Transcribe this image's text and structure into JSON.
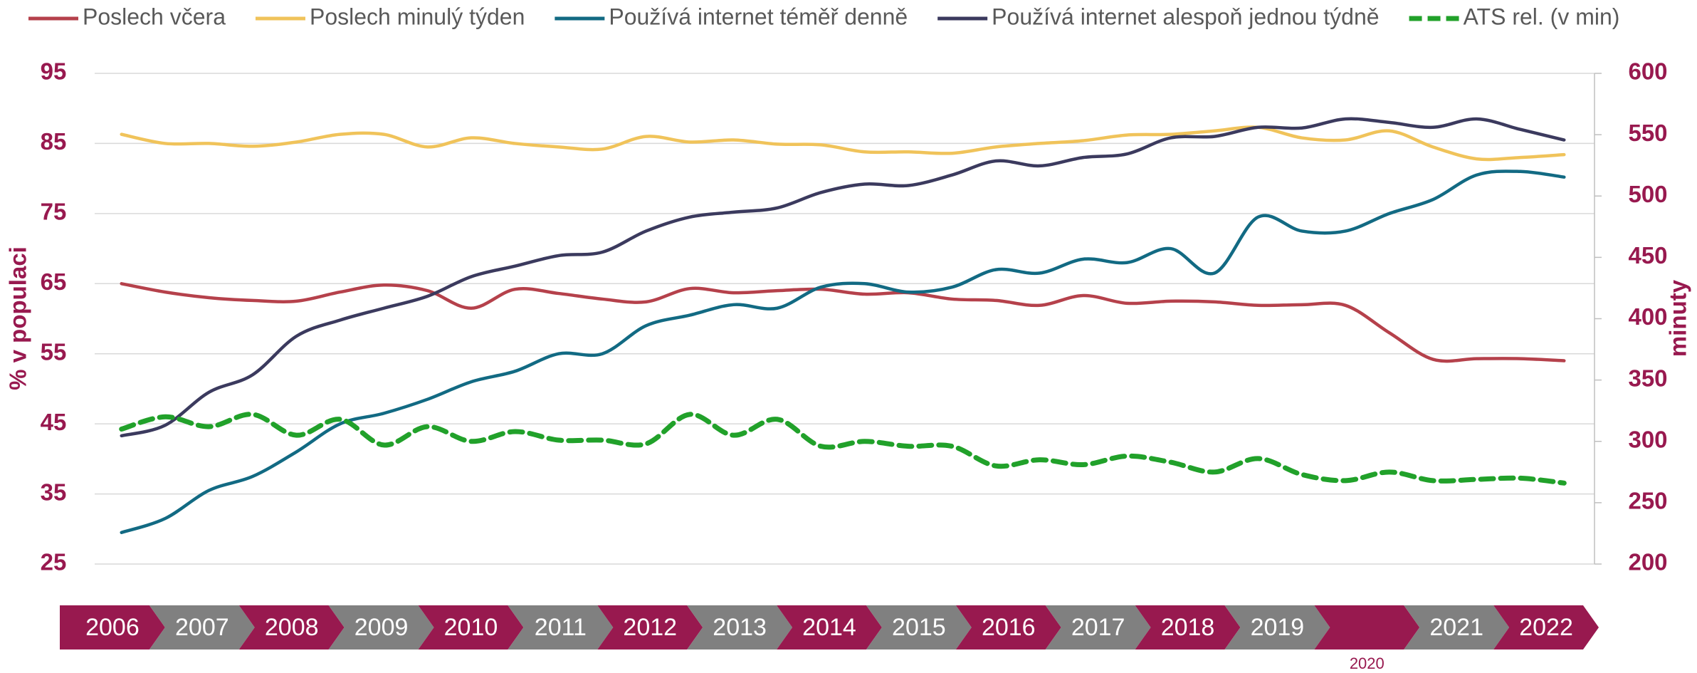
{
  "chart_data": {
    "type": "line",
    "ylabel": "% v populaci",
    "y2label": "minuty",
    "x": [
      2006.25,
      2006.75,
      2007.25,
      2007.75,
      2008.25,
      2008.75,
      2009.25,
      2009.75,
      2010.25,
      2010.75,
      2011.25,
      2011.75,
      2012.25,
      2012.75,
      2013.25,
      2013.75,
      2014.25,
      2014.75,
      2015.25,
      2015.75,
      2016.25,
      2016.75,
      2017.25,
      2017.75,
      2018.25,
      2018.75,
      2019.25,
      2019.75,
      2020.25,
      2020.75,
      2021.25,
      2021.75,
      2022.25,
      2022.75
    ],
    "xlim": [
      2006,
      2023
    ],
    "ylim": [
      25,
      95
    ],
    "yticks": [
      25,
      35,
      45,
      55,
      65,
      75,
      85,
      95
    ],
    "y2lim": [
      200,
      600
    ],
    "y2ticks": [
      200,
      250,
      300,
      350,
      400,
      450,
      500,
      550,
      600
    ],
    "grid": true,
    "legend": "top",
    "series": [
      {
        "name": "Poslech včera",
        "color": "#b5414b",
        "style": "solid",
        "values": [
          65,
          63.8,
          63,
          62.6,
          62.5,
          63.8,
          64.8,
          64,
          61.5,
          64.2,
          63.6,
          62.8,
          62.4,
          64.3,
          63.7,
          64,
          64.2,
          63.5,
          63.7,
          62.8,
          62.6,
          61.9,
          63.3,
          62.2,
          62.5,
          62.4,
          61.9,
          62,
          61.9,
          58,
          54.2,
          54.3,
          54.3,
          54
        ]
      },
      {
        "name": "Poslech minulý týden",
        "color": "#f0c35a",
        "style": "solid",
        "values": [
          86.3,
          85,
          85,
          84.6,
          85.2,
          86.3,
          86.3,
          84.5,
          85.8,
          85,
          84.5,
          84.2,
          86,
          85.2,
          85.5,
          84.9,
          84.8,
          83.8,
          83.8,
          83.6,
          84.5,
          85,
          85.4,
          86.2,
          86.3,
          86.8,
          87.3,
          85.8,
          85.5,
          86.8,
          84.5,
          82.8,
          83,
          83.4
        ]
      },
      {
        "name": "Používá internet téměř denně",
        "color": "#126a83",
        "style": "solid",
        "values": [
          29.5,
          31.5,
          35.5,
          37.5,
          41,
          45,
          46.5,
          48.5,
          51,
          52.5,
          55,
          55,
          59,
          60.5,
          62,
          61.5,
          64.5,
          65,
          63.8,
          64.5,
          67,
          66.5,
          68.5,
          68,
          70,
          66.5,
          74.5,
          72.5,
          72.5,
          75,
          77,
          80.5,
          81,
          80.2
        ]
      },
      {
        "name": "Používá internet alespoň jednou týdně",
        "color": "#3b3a5e",
        "style": "solid",
        "values": [
          43.3,
          44.8,
          49.5,
          52,
          57.5,
          59.8,
          61.5,
          63.2,
          66,
          67.5,
          69,
          69.5,
          72.5,
          74.5,
          75.2,
          75.8,
          78,
          79.2,
          79,
          80.5,
          82.5,
          81.8,
          83,
          83.5,
          85.8,
          86,
          87.3,
          87.2,
          88.5,
          88,
          87.3,
          88.5,
          87,
          85.5
        ]
      },
      {
        "name": "ATS rel. (v min)",
        "color": "#21a12a",
        "style": "dashed",
        "axis": "y2",
        "values": [
          310,
          320,
          312,
          322,
          305,
          318,
          297,
          312,
          300,
          308,
          301,
          301,
          298,
          322,
          305,
          318,
          296,
          300,
          296,
          296,
          280,
          285,
          281,
          288,
          283,
          275,
          286,
          273,
          268,
          275,
          268,
          269,
          270,
          266
        ]
      }
    ],
    "timeline": [
      "2006",
      "2007",
      "2008",
      "2009",
      "2010",
      "2011",
      "2012",
      "2013",
      "2014",
      "2015",
      "2016",
      "2017",
      "2018",
      "2019",
      null,
      "2021",
      "2022"
    ],
    "timeline_note": "2020"
  }
}
